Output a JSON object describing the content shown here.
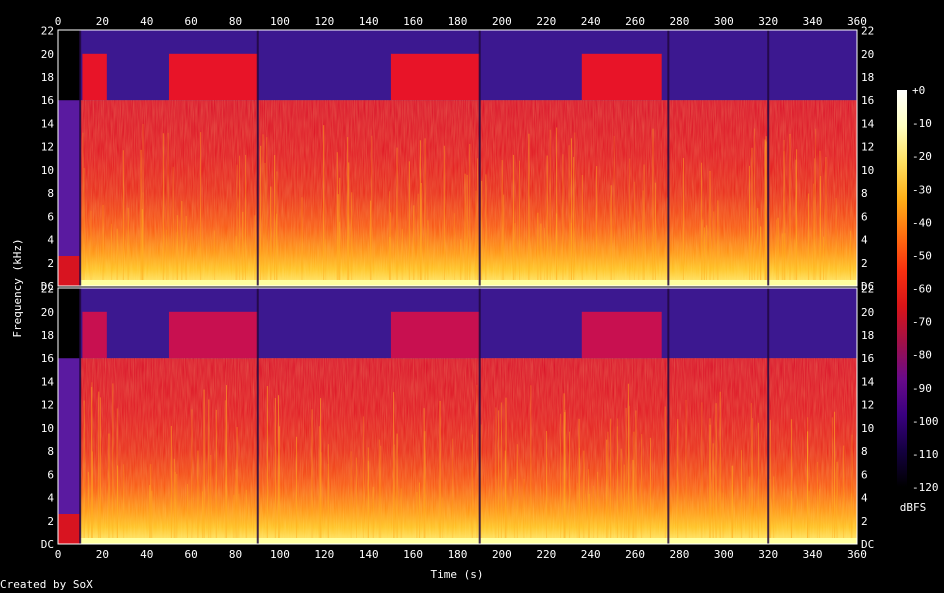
{
  "chart_data": {
    "type": "heatmap",
    "title": "",
    "xlabel": "Time (s)",
    "ylabel": "Frequency (kHz)",
    "x_range": [
      0,
      360
    ],
    "x_ticks": [
      0,
      20,
      40,
      60,
      80,
      100,
      120,
      140,
      160,
      180,
      200,
      220,
      240,
      260,
      280,
      300,
      320,
      340,
      360
    ],
    "y_range_khz": [
      0,
      22.05
    ],
    "y_tick_labels": [
      "DC",
      "2",
      "4",
      "6",
      "8",
      "10",
      "12",
      "14",
      "16",
      "18",
      "20",
      "22"
    ],
    "channels": 2,
    "colorbar": {
      "label": "dBFS",
      "range": [
        -120,
        0
      ],
      "tick_labels": [
        "+0",
        "-10",
        "-20",
        "-30",
        "-40",
        "-50",
        "-60",
        "-70",
        "-80",
        "-90",
        "-100",
        "-110",
        "-120"
      ],
      "colors": [
        "#000000",
        "#140040",
        "#3a0080",
        "#6a0a8a",
        "#a01048",
        "#d81418",
        "#f83010",
        "#ff7010",
        "#ffb018",
        "#ffe060",
        "#ffffc0",
        "#ffffff"
      ]
    },
    "silence_ranges_s": [
      [
        0,
        10
      ]
    ],
    "track_boundaries_s": [
      10,
      90,
      190,
      275,
      320
    ],
    "extended_hf_ranges_s": [
      [
        11,
        22
      ],
      [
        50,
        90
      ],
      [
        150,
        190
      ],
      [
        236,
        272
      ]
    ],
    "band_limits_khz": {
      "intro_cutoff": 16,
      "main_cutoff": 16,
      "extended_cutoff": 20
    }
  },
  "footer": {
    "credit": "Created by SoX"
  }
}
